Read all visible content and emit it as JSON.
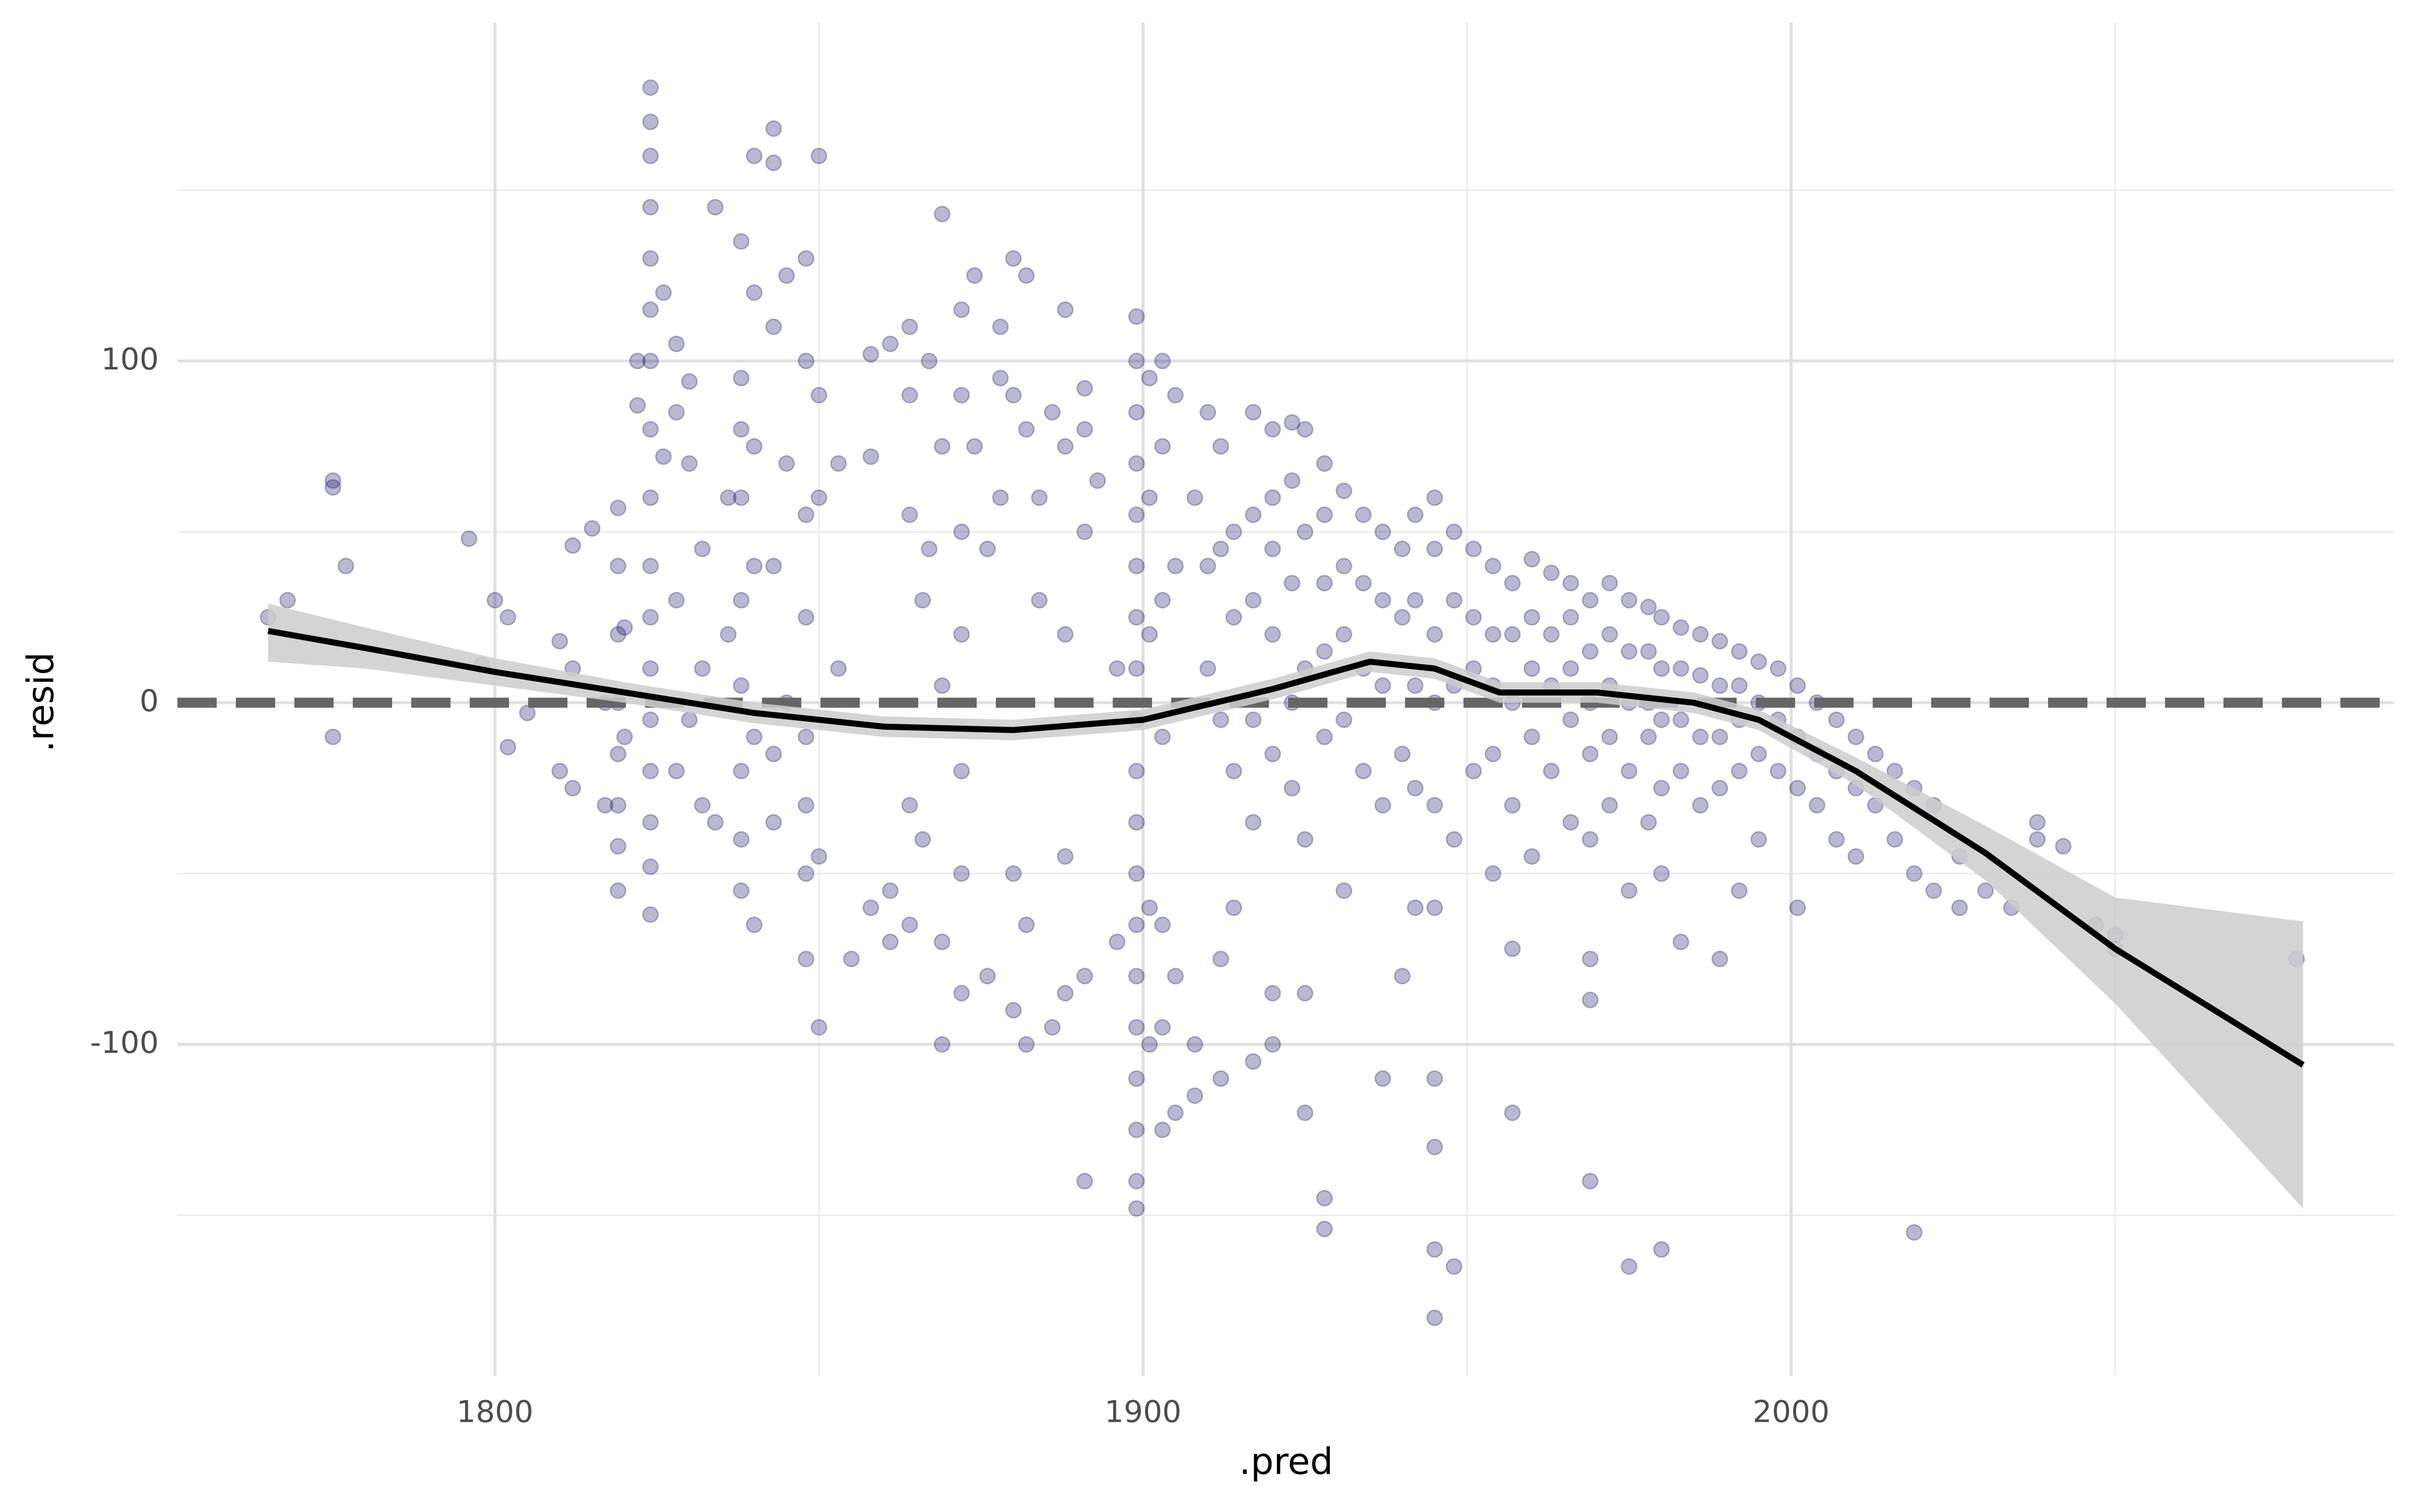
{
  "chart_data": {
    "type": "scatter",
    "xlabel": ".pred",
    "ylabel": ".resid",
    "xlim": [
      1751,
      2093
    ],
    "ylim": [
      -197,
      199
    ],
    "xticks": [
      1800,
      1900,
      2000
    ],
    "yticks": [
      -100,
      0,
      100
    ],
    "x_minor_grid": [
      1850,
      1950,
      2050
    ],
    "y_minor_grid": [
      -150,
      -50,
      50,
      150
    ],
    "grid": true,
    "hline": 0,
    "series": [
      {
        "color": "#1a1466",
        "opacity": 0.3,
        "x": [
          1765,
          1768,
          1775,
          1775,
          1775,
          1777,
          1796,
          1798,
          1800,
          1802,
          1802,
          1805,
          1810,
          1810,
          1812,
          1812,
          1812,
          1815,
          1817,
          1817,
          1819,
          1819,
          1819,
          1819,
          1819,
          1819,
          1819,
          1819,
          1820,
          1820,
          1822,
          1822,
          1824,
          1824,
          1824,
          1824,
          1824,
          1824,
          1824,
          1824,
          1824,
          1824,
          1824,
          1824,
          1824,
          1824,
          1824,
          1824,
          1824,
          1826,
          1826,
          1828,
          1828,
          1828,
          1828,
          1830,
          1830,
          1830,
          1832,
          1832,
          1832,
          1834,
          1834,
          1836,
          1836,
          1838,
          1838,
          1838,
          1838,
          1838,
          1838,
          1838,
          1838,
          1838,
          1840,
          1840,
          1840,
          1840,
          1840,
          1840,
          1843,
          1843,
          1843,
          1843,
          1843,
          1843,
          1845,
          1845,
          1845,
          1848,
          1848,
          1848,
          1848,
          1848,
          1848,
          1848,
          1848,
          1850,
          1850,
          1850,
          1850,
          1850,
          1853,
          1853,
          1855,
          1858,
          1858,
          1858,
          1861,
          1861,
          1861,
          1864,
          1864,
          1864,
          1864,
          1864,
          1866,
          1866,
          1867,
          1867,
          1869,
          1869,
          1869,
          1869,
          1869,
          1872,
          1872,
          1872,
          1872,
          1872,
          1872,
          1872,
          1874,
          1874,
          1876,
          1876,
          1878,
          1878,
          1878,
          1880,
          1880,
          1880,
          1880,
          1882,
          1882,
          1882,
          1882,
          1884,
          1884,
          1886,
          1886,
          1888,
          1888,
          1888,
          1888,
          1888,
          1891,
          1891,
          1891,
          1891,
          1891,
          1893,
          1896,
          1896,
          1899,
          1899,
          1899,
          1899,
          1899,
          1899,
          1899,
          1899,
          1899,
          1899,
          1899,
          1899,
          1899,
          1899,
          1899,
          1899,
          1899,
          1899,
          1899,
          1901,
          1901,
          1901,
          1901,
          1901,
          1903,
          1903,
          1903,
          1903,
          1903,
          1903,
          1903,
          1905,
          1905,
          1905,
          1905,
          1908,
          1908,
          1908,
          1910,
          1910,
          1910,
          1912,
          1912,
          1912,
          1912,
          1912,
          1914,
          1914,
          1914,
          1914,
          1917,
          1917,
          1917,
          1917,
          1917,
          1917,
          1920,
          1920,
          1920,
          1920,
          1920,
          1920,
          1920,
          1923,
          1923,
          1923,
          1923,
          1923,
          1925,
          1925,
          1925,
          1925,
          1925,
          1925,
          1928,
          1928,
          1928,
          1928,
          1928,
          1928,
          1928,
          1931,
          1931,
          1931,
          1931,
          1931,
          1934,
          1934,
          1934,
          1934,
          1937,
          1937,
          1937,
          1937,
          1937,
          1940,
          1940,
          1940,
          1940,
          1942,
          1942,
          1942,
          1942,
          1942,
          1945,
          1945,
          1945,
          1945,
          1945,
          1945,
          1945,
          1945,
          1945,
          1945,
          1948,
          1948,
          1948,
          1948,
          1948,
          1951,
          1951,
          1951,
          1951,
          1954,
          1954,
          1954,
          1954,
          1954,
          1957,
          1957,
          1957,
          1957,
          1957,
          1957,
          1960,
          1960,
          1960,
          1960,
          1960,
          1963,
          1963,
          1963,
          1963,
          1966,
          1966,
          1966,
          1966,
          1966,
          1969,
          1969,
          1969,
          1969,
          1969,
          1969,
          1969,
          1969,
          1972,
          1972,
          1972,
          1972,
          1972,
          1975,
          1975,
          1975,
          1975,
          1975,
          1975,
          1978,
          1978,
          1978,
          1978,
          1978,
          1980,
          1980,
          1980,
          1980,
          1980,
          1980,
          1983,
          1983,
          1983,
          1983,
          1983,
          1986,
          1986,
          1986,
          1986,
          1989,
          1989,
          1989,
          1989,
          1989,
          1992,
          1992,
          1992,
          1992,
          1992,
          1995,
          1995,
          1995,
          1995,
          1998,
          1998,
          1998,
          2001,
          2001,
          2001,
          2001,
          2004,
          2004,
          2004,
          2007,
          2007,
          2007,
          2010,
          2010,
          2010,
          2013,
          2013,
          2016,
          2016,
          2019,
          2019,
          2019,
          2022,
          2022,
          2026,
          2026,
          2030,
          2034,
          2038,
          2038,
          2042,
          2047,
          2050,
          2050,
          2078
        ],
        "values": [
          25,
          30,
          65,
          63,
          -10,
          40,
          48,
          11,
          30,
          25,
          -13,
          -3,
          18,
          -20,
          46,
          10,
          -25,
          51,
          0,
          -30,
          57,
          40,
          20,
          0,
          -15,
          -30,
          -42,
          -55,
          22,
          -10,
          100,
          87,
          180,
          170,
          160,
          145,
          130,
          115,
          100,
          80,
          60,
          40,
          25,
          10,
          -5,
          -20,
          -35,
          -48,
          -62,
          120,
          72,
          105,
          85,
          30,
          -20,
          94,
          70,
          -5,
          45,
          10,
          -30,
          145,
          -35,
          60,
          20,
          135,
          95,
          80,
          60,
          30,
          5,
          -20,
          -40,
          -55,
          160,
          120,
          75,
          40,
          -10,
          -65,
          168,
          158,
          110,
          40,
          -15,
          -35,
          125,
          70,
          0,
          130,
          100,
          55,
          25,
          -10,
          -30,
          -50,
          -75,
          160,
          90,
          60,
          -45,
          -95,
          70,
          10,
          -75,
          102,
          72,
          -60,
          105,
          -55,
          -70,
          110,
          90,
          55,
          -30,
          -65,
          30,
          -40,
          100,
          45,
          143,
          75,
          5,
          -70,
          -100,
          115,
          90,
          50,
          20,
          -20,
          -50,
          -85,
          75,
          125,
          45,
          -80,
          110,
          95,
          60,
          130,
          90,
          -50,
          -90,
          80,
          125,
          -100,
          -65,
          60,
          30,
          85,
          -95,
          115,
          75,
          20,
          -45,
          -85,
          92,
          80,
          50,
          -80,
          -140,
          65,
          -70,
          10,
          113,
          100,
          85,
          70,
          55,
          40,
          25,
          10,
          -5,
          -20,
          -35,
          -50,
          -65,
          -80,
          -95,
          -110,
          -125,
          -140,
          -148,
          95,
          60,
          20,
          -60,
          -100,
          100,
          75,
          30,
          -10,
          -65,
          -95,
          -125,
          90,
          40,
          -80,
          -120,
          60,
          -100,
          -115,
          85,
          40,
          10,
          75,
          45,
          -5,
          -75,
          -110,
          50,
          25,
          -20,
          -60,
          85,
          55,
          30,
          -5,
          -35,
          -105,
          80,
          60,
          45,
          20,
          -15,
          -85,
          -100,
          82,
          65,
          35,
          0,
          -25,
          80,
          50,
          10,
          -40,
          -85,
          -120,
          70,
          55,
          35,
          15,
          -10,
          -145,
          -154,
          62,
          40,
          20,
          -5,
          -55,
          55,
          35,
          10,
          -20,
          50,
          30,
          5,
          -30,
          -110,
          45,
          25,
          -15,
          -80,
          55,
          30,
          5,
          -25,
          -60,
          60,
          45,
          20,
          0,
          -30,
          -60,
          -110,
          -130,
          -160,
          -180,
          50,
          30,
          5,
          -40,
          -165,
          45,
          25,
          10,
          -20,
          40,
          20,
          5,
          -15,
          -50,
          35,
          20,
          0,
          -30,
          -120,
          -72,
          42,
          25,
          10,
          -10,
          -45,
          38,
          20,
          5,
          -20,
          35,
          25,
          10,
          -5,
          -35,
          30,
          15,
          0,
          -15,
          -40,
          -75,
          -87,
          -140,
          35,
          20,
          5,
          -10,
          -30,
          30,
          15,
          0,
          -20,
          -55,
          -165,
          28,
          15,
          0,
          -10,
          -35,
          25,
          10,
          -5,
          -25,
          -50,
          -160,
          22,
          10,
          -5,
          -20,
          -70,
          20,
          8,
          -10,
          -30,
          18,
          5,
          -10,
          -25,
          -75,
          15,
          5,
          -5,
          -20,
          -55,
          12,
          0,
          -15,
          -40,
          10,
          -5,
          -20,
          5,
          -10,
          -25,
          -60,
          0,
          -15,
          -30,
          -5,
          -20,
          -40,
          -10,
          -25,
          -45,
          -15,
          -30,
          -20,
          -40,
          -25,
          -50,
          -155,
          -30,
          -55,
          -45,
          -60,
          -55,
          -60,
          -35,
          -40,
          -42,
          -65,
          -72,
          -68,
          -75
        ]
      }
    ],
    "smooth": {
      "color": "#000000",
      "band_color": "#cccccc",
      "x": [
        1765,
        1780,
        1800,
        1820,
        1840,
        1860,
        1880,
        1900,
        1920,
        1935,
        1945,
        1955,
        1970,
        1985,
        1995,
        2010,
        2030,
        2050,
        2079
      ],
      "values": [
        21,
        16,
        9,
        3,
        -3,
        -7,
        -8,
        -5,
        4,
        12,
        10,
        3,
        3,
        0,
        -5,
        -20,
        -44,
        -72,
        -106
      ],
      "lower": [
        12,
        10,
        5,
        0,
        -6,
        -10,
        -11,
        -8,
        1,
        9,
        7,
        0,
        0,
        -3,
        -8,
        -24,
        -52,
        -88,
        -148
      ],
      "upper": [
        29,
        22,
        13,
        6,
        0,
        -4,
        -5,
        -2,
        7,
        15,
        13,
        6,
        6,
        3,
        -2,
        -16,
        -36,
        -57,
        -64
      ]
    }
  }
}
